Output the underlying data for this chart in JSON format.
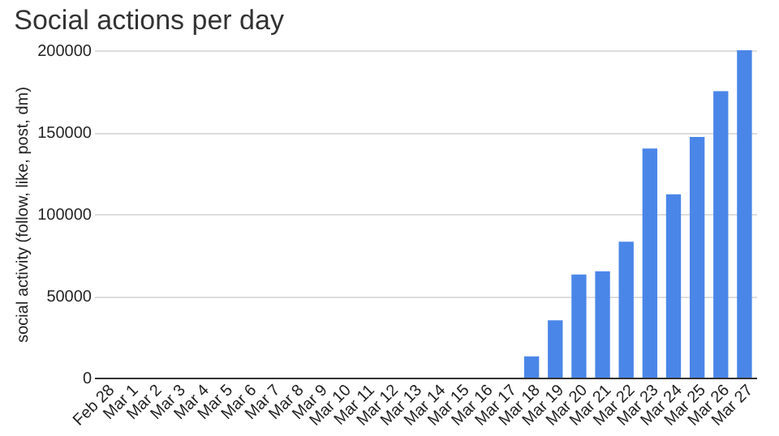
{
  "chart_data": {
    "type": "bar",
    "title": "Social actions per day",
    "ylabel": "social activity (follow, like, post, dm)",
    "categories": [
      "Feb 28",
      "Mar 1",
      "Mar 2",
      "Mar 3",
      "Mar 4",
      "Mar 5",
      "Mar 6",
      "Mar 7",
      "Mar 8",
      "Mar 9",
      "Mar 10",
      "Mar 11",
      "Mar 12",
      "Mar 13",
      "Mar 14",
      "Mar 15",
      "Mar 16",
      "Mar 17",
      "Mar 18",
      "Mar 19",
      "Mar 20",
      "Mar 21",
      "Mar 22",
      "Mar 23",
      "Mar 24",
      "Mar 25",
      "Mar 26",
      "Mar 27"
    ],
    "values": [
      0,
      0,
      0,
      0,
      0,
      0,
      0,
      0,
      0,
      0,
      0,
      0,
      0,
      0,
      0,
      0,
      0,
      0,
      13000,
      35000,
      63000,
      65000,
      83000,
      140000,
      112000,
      147000,
      175000,
      200000
    ],
    "color": "#4a86e8",
    "ylim": [
      0,
      200000
    ],
    "yticks": [
      0,
      50000,
      100000,
      150000,
      200000
    ],
    "grid": "y"
  }
}
